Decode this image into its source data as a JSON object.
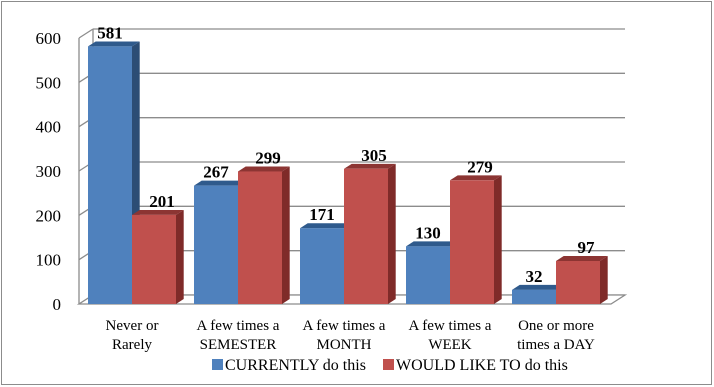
{
  "chart_data": {
    "type": "bar",
    "categories": [
      [
        "Never or",
        "Rarely"
      ],
      [
        "A few times a",
        "SEMESTER"
      ],
      [
        "A few times a",
        "MONTH"
      ],
      [
        "A few times a",
        "WEEK"
      ],
      [
        "One or more",
        "times a DAY"
      ]
    ],
    "series": [
      {
        "name": "CURRENTLY do this",
        "values": [
          581,
          267,
          171,
          130,
          32
        ],
        "color": "#4f81bd",
        "side_color": "#2c4d75",
        "top_color": "#2f5a8c"
      },
      {
        "name": "WOULD LIKE TO do this",
        "values": [
          201,
          299,
          305,
          279,
          97
        ],
        "color": "#c0504d",
        "side_color": "#7f2b29",
        "top_color": "#8c3533"
      }
    ],
    "yticks": [
      0,
      100,
      200,
      300,
      400,
      500,
      600
    ],
    "ylim": [
      0,
      600
    ],
    "grid": true,
    "legend_position": "bottom",
    "three_d": true
  }
}
